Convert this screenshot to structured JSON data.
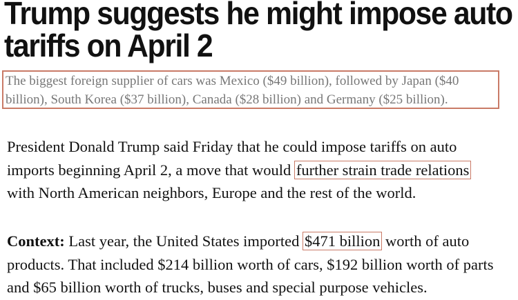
{
  "headline": {
    "line1": "Trump suggests he might impose auto",
    "line2": "tariffs on April 2"
  },
  "subtitle": {
    "line1": "The biggest foreign supplier of cars was Mexico ($49 billion), followed by Japan ($40",
    "line2": "billion), South Korea ($37 billion), Canada ($28 billion) and Germany ($25 billion)."
  },
  "paragraph1": {
    "line1": "President Donald Trump said Friday that he could impose tariffs on auto",
    "line2_pre": "imports beginning April 2, a move that would ",
    "line2_highlight": "further strain trade relations",
    "line3": "with North American neighbors, Europe and the rest of the world."
  },
  "paragraph2": {
    "label": "Context:",
    "line1_pre": " Last year, the United States imported ",
    "line1_highlight": "$471 billion",
    "line1_post": " worth of auto",
    "line2": "products. That included $214 billion worth of cars, $192 billion worth of parts",
    "line3": "and $65 billion worth of trucks, buses and special purpose vehicles."
  },
  "colors": {
    "highlight_border": "#c97a66",
    "subtitle_text": "#777777"
  }
}
